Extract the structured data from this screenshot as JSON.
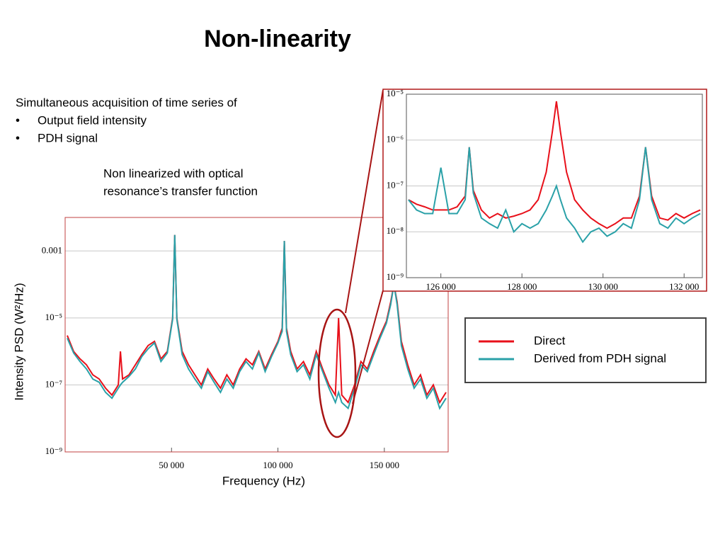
{
  "title": "Non-linearity",
  "intro": "Simultaneous acquisition of  time series of",
  "bullets": [
    "Output field intensity",
    "PDH signal"
  ],
  "note": [
    "Non linearized with optical",
    "resonance’s transfer function"
  ],
  "chart_data": [
    {
      "type": "line",
      "ylog": true,
      "grid": true,
      "legend": "right",
      "xlabel": "Frequency  (Hz)",
      "ylabel": "Intensity PSD (W²/Hz)",
      "xlim": [
        0,
        180000
      ],
      "ylim": [
        1e-09,
        0.01
      ],
      "xticks": [
        {
          "value": 50000,
          "label": "50 000"
        },
        {
          "value": 100000,
          "label": "100 000"
        },
        {
          "value": 150000,
          "label": "150 000"
        }
      ],
      "yticks": [
        {
          "value": 1e-09,
          "label": "10⁻⁹"
        },
        {
          "value": 1e-07,
          "label": "10⁻⁷"
        },
        {
          "value": 1e-05,
          "label": "10⁻⁵"
        },
        0.001
      ],
      "x": [
        1000,
        4000,
        7000,
        10000,
        13000,
        16000,
        19000,
        22000,
        25000,
        26000,
        27000,
        30000,
        33000,
        36000,
        39000,
        42000,
        45000,
        48000,
        50500,
        51500,
        52500,
        55000,
        58000,
        61000,
        64000,
        67000,
        70000,
        73000,
        76000,
        79000,
        82000,
        85000,
        88000,
        91000,
        94000,
        97000,
        100000,
        102000,
        103000,
        104000,
        106000,
        109000,
        112000,
        115000,
        118000,
        121000,
        124000,
        127000,
        128500,
        130000,
        133000,
        136000,
        139000,
        142000,
        145000,
        148000,
        151000,
        153000,
        154500,
        156000,
        158000,
        161000,
        164000,
        167000,
        170000,
        173000,
        176000,
        179000
      ],
      "series": [
        {
          "name": "Direct",
          "color": "#e8101a",
          "values": [
            3e-06,
            1e-06,
            6e-07,
            4e-07,
            2e-07,
            1.5e-07,
            8e-08,
            5e-08,
            1e-07,
            1e-06,
            1.5e-07,
            2e-07,
            4e-07,
            8e-07,
            1.5e-06,
            2e-06,
            6e-07,
            1e-06,
            1e-05,
            0.003,
            1e-05,
            1e-06,
            4e-07,
            2e-07,
            1e-07,
            3e-07,
            1.5e-07,
            8e-08,
            2e-07,
            1e-07,
            3e-07,
            6e-07,
            4e-07,
            1e-06,
            3e-07,
            8e-07,
            2e-06,
            5e-06,
            0.002,
            5e-06,
            1e-06,
            3e-07,
            5e-07,
            2e-07,
            1e-06,
            3e-07,
            1e-07,
            5e-08,
            1e-05,
            5e-08,
            3e-08,
            1e-07,
            5e-07,
            3e-07,
            1e-06,
            3e-06,
            8e-06,
            3e-05,
            0.0001,
            3e-05,
            2e-06,
            4e-07,
            1e-07,
            2e-07,
            5e-08,
            1e-07,
            3e-08,
            6e-08
          ]
        },
        {
          "name": "Derived from PDH signal",
          "color": "#2aa1a8",
          "values": [
            2.5e-06,
            9e-07,
            5e-07,
            3e-07,
            1.5e-07,
            1.2e-07,
            6e-08,
            4e-08,
            8e-08,
            1e-07,
            1.2e-07,
            1.8e-07,
            3e-07,
            7e-07,
            1.2e-06,
            1.8e-06,
            5e-07,
            9e-07,
            9e-06,
            0.003,
            9e-06,
            8e-07,
            3e-07,
            1.5e-07,
            8e-08,
            2.5e-07,
            1.2e-07,
            6e-08,
            1.5e-07,
            8e-08,
            2.5e-07,
            5e-07,
            3e-07,
            9e-07,
            2.5e-07,
            7e-07,
            1.8e-06,
            4e-06,
            0.002,
            4e-06,
            8e-07,
            2.5e-07,
            4e-07,
            1.5e-07,
            8e-07,
            2.5e-07,
            8e-08,
            3e-08,
            6e-08,
            3e-08,
            2e-08,
            8e-08,
            4e-07,
            2.5e-07,
            8e-07,
            2.5e-06,
            7e-06,
            2.5e-05,
            0.0001,
            2.5e-05,
            1.5e-06,
            3e-07,
            8e-08,
            1.5e-07,
            4e-08,
            8e-08,
            2e-08,
            4e-08
          ]
        }
      ]
    },
    {
      "type": "line",
      "ylog": true,
      "grid": true,
      "xlim": [
        125150,
        132450
      ],
      "ylim": [
        1e-09,
        1e-05
      ],
      "xticks": [
        {
          "value": 126000,
          "label": "126 000"
        },
        {
          "value": 128000,
          "label": "128 000"
        },
        {
          "value": 130000,
          "label": "130 000"
        },
        {
          "value": 132000,
          "label": "132 000"
        }
      ],
      "yticks": [
        {
          "value": 1e-09,
          "label": "10⁻⁹"
        },
        {
          "value": 1e-08,
          "label": "10⁻⁸"
        },
        {
          "value": 1e-07,
          "label": "10⁻⁷"
        },
        {
          "value": 1e-06,
          "label": "10⁻⁶"
        },
        {
          "value": 1e-05,
          "label": "10⁻⁵"
        }
      ],
      "x": [
        125200,
        125400,
        125600,
        125800,
        126000,
        126200,
        126400,
        126600,
        126700,
        126800,
        127000,
        127200,
        127400,
        127600,
        127800,
        128000,
        128200,
        128400,
        128600,
        128750,
        128850,
        128950,
        129100,
        129300,
        129500,
        129700,
        129900,
        130100,
        130300,
        130500,
        130700,
        130900,
        131050,
        131200,
        131400,
        131600,
        131800,
        132000,
        132200,
        132400
      ],
      "series": [
        {
          "color": "#e8101a",
          "values": [
            5e-08,
            4e-08,
            3.5e-08,
            3e-08,
            3e-08,
            3e-08,
            3.5e-08,
            6e-08,
            7e-07,
            8e-08,
            3e-08,
            2e-08,
            2.5e-08,
            2e-08,
            2.2e-08,
            2.5e-08,
            3e-08,
            5e-08,
            2e-07,
            1.5e-06,
            7e-06,
            1.5e-06,
            2e-07,
            5e-08,
            3e-08,
            2e-08,
            1.5e-08,
            1.2e-08,
            1.5e-08,
            2e-08,
            2e-08,
            6e-08,
            7e-07,
            6e-08,
            2e-08,
            1.8e-08,
            2.5e-08,
            2e-08,
            2.5e-08,
            3e-08
          ]
        },
        {
          "color": "#2aa1a8",
          "values": [
            5e-08,
            3e-08,
            2.5e-08,
            2.5e-08,
            2.5e-07,
            2.5e-08,
            2.5e-08,
            5e-08,
            7e-07,
            7e-08,
            2e-08,
            1.5e-08,
            1.2e-08,
            3e-08,
            1e-08,
            1.5e-08,
            1.2e-08,
            1.5e-08,
            3e-08,
            6e-08,
            1e-07,
            5e-08,
            2e-08,
            1.2e-08,
            6e-09,
            1e-08,
            1.2e-08,
            8e-09,
            1e-08,
            1.5e-08,
            1.2e-08,
            5e-08,
            7e-07,
            5e-08,
            1.5e-08,
            1.2e-08,
            2e-08,
            1.5e-08,
            2e-08,
            2.5e-08
          ]
        }
      ]
    }
  ]
}
